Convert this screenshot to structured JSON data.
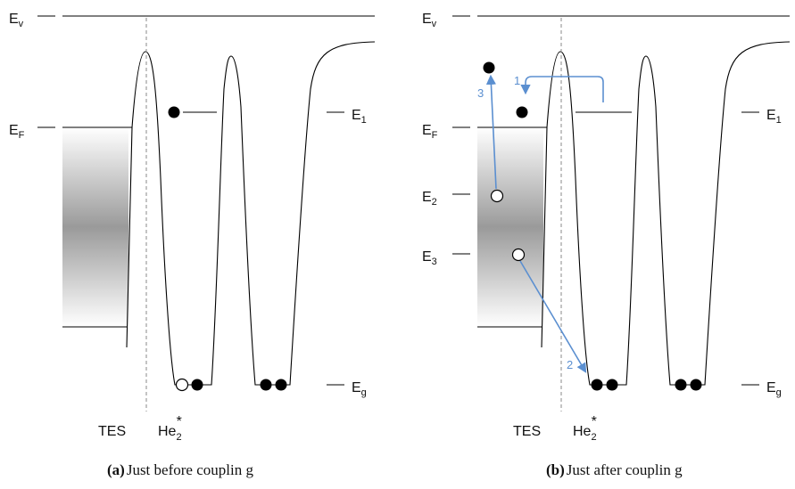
{
  "panel_a": {
    "label_ev": "E",
    "label_ev_sub": "v",
    "label_ef": "E",
    "label_ef_sub": "F",
    "label_e1": "E",
    "label_e1_sub": "1",
    "label_eg": "E",
    "label_eg_sub": "g",
    "label_tes": "TES",
    "label_he": "He",
    "label_he_sub": "2",
    "label_he_sup": "*",
    "caption_tag": "(a)",
    "caption_text": "Just before couplin g"
  },
  "panel_b": {
    "label_ev": "E",
    "label_ev_sub": "v",
    "label_ef": "E",
    "label_ef_sub": "F",
    "label_e1": "E",
    "label_e1_sub": "1",
    "label_e2": "E",
    "label_e2_sub": "2",
    "label_e3": "E",
    "label_e3_sub": "3",
    "label_eg": "E",
    "label_eg_sub": "g",
    "label_tes": "TES",
    "label_he": "He",
    "label_he_sub": "2",
    "label_he_sup": "*",
    "step_1": "1",
    "step_2": "2",
    "step_3": "3",
    "caption_tag": "(b)",
    "caption_text": "Just after couplin g"
  },
  "colors": {
    "arrow": "#5b8fd0",
    "gradient_dark": "#9a9a9a",
    "gradient_light": "#ffffff"
  }
}
